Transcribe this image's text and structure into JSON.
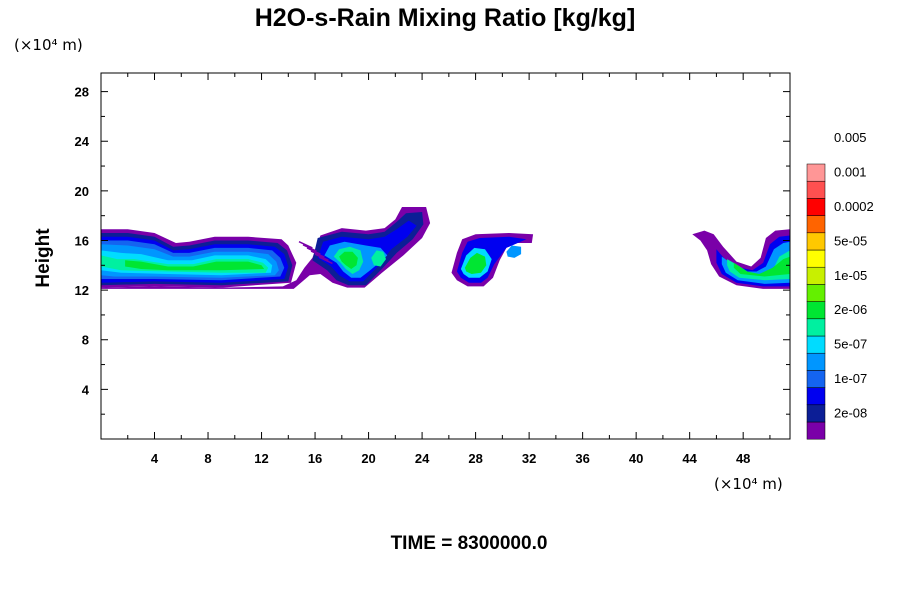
{
  "chart_data": {
    "type": "contour",
    "title": "H2O-s-Rain Mixing Ratio [kg/kg]",
    "x_unit": "(×10⁴ m)",
    "y_unit": "(×10⁴ m)",
    "ylabel": "Height",
    "xlim": [
      0,
      51.5
    ],
    "ylim": [
      0,
      29.5
    ],
    "x_ticks": [
      "4",
      "8",
      "12",
      "16",
      "20",
      "24",
      "28",
      "32",
      "36",
      "40",
      "44",
      "48"
    ],
    "y_ticks": [
      "4",
      "8",
      "12",
      "16",
      "20",
      "24",
      "28"
    ],
    "time_label": "TIME = 8300000.0",
    "legend": {
      "labels": [
        "2e-08",
        "1e-07",
        "5e-07",
        "2e-06",
        "1e-05",
        "5e-05",
        "0.0002",
        "0.001",
        "0.005"
      ],
      "colors": [
        "#7a00a8",
        "#0c1e96",
        "#0000f0",
        "#1464f0",
        "#0096ff",
        "#00dcff",
        "#00f0a0",
        "#00e632",
        "#64f000",
        "#c8f000",
        "#ffff00",
        "#ffc800",
        "#ff6400",
        "#ff0000",
        "#ff5050",
        "#ff9696"
      ]
    },
    "regions": [
      {
        "name": "left-cloud-band",
        "levels": [
          {
            "color": "#7a00a8",
            "points": [
              [
                0,
                12.3
              ],
              [
                4,
                12.4
              ],
              [
                8,
                12.3
              ],
              [
                12,
                12.4
              ],
              [
                14.2,
                12.7
              ],
              [
                15.6,
                14.5
              ],
              [
                16.3,
                16.3
              ],
              [
                18,
                16.9
              ],
              [
                19.8,
                16.7
              ],
              [
                21.2,
                16.9
              ],
              [
                22,
                17.6
              ],
              [
                22.6,
                18.6
              ],
              [
                24.3,
                18.7
              ],
              [
                24.5,
                17.3
              ],
              [
                23.8,
                15.8
              ],
              [
                22.3,
                14.6
              ],
              [
                20.8,
                13.3
              ],
              [
                19.6,
                12.2
              ],
              [
                18.4,
                12.2
              ],
              [
                17.2,
                12.6
              ],
              [
                16.4,
                13.4
              ],
              [
                15.6,
                13.3
              ],
              [
                14,
                12.2
              ],
              [
                8,
                12.1
              ],
              [
                0,
                12.1
              ]
            ],
            "note": "rendered as union of outer shapes"
          }
        ]
      }
    ]
  }
}
